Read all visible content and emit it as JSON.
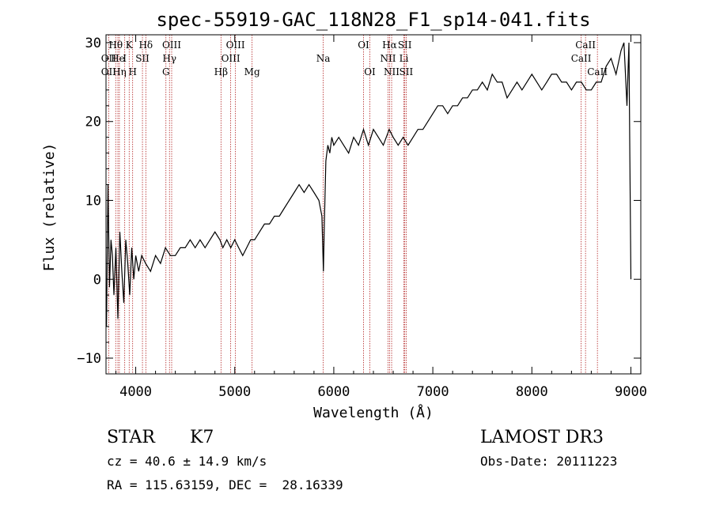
{
  "chart_data": {
    "type": "line",
    "title": "spec-55919-GAC_118N28_F1_sp14-041.fits",
    "xlabel": "Wavelength (Å)",
    "ylabel": "Flux (relative)",
    "xlim": [
      3700,
      9100
    ],
    "ylim": [
      -12,
      31
    ],
    "xticks": [
      4000,
      5000,
      6000,
      7000,
      8000,
      9000
    ],
    "yticks": [
      -10,
      0,
      10,
      20,
      30
    ],
    "grid": false,
    "colors": {
      "spectrum": "#000000",
      "lines": "#b22222"
    },
    "series": [
      {
        "x": [
          3705,
          3720,
          3735,
          3750,
          3765,
          3780,
          3800,
          3820,
          3840,
          3860,
          3880,
          3900,
          3920,
          3940,
          3960,
          3980,
          4000,
          4030,
          4060,
          4100,
          4150,
          4200,
          4250,
          4300,
          4350,
          4400,
          4450,
          4500,
          4550,
          4600,
          4650,
          4700,
          4750,
          4800,
          4850,
          4880,
          4920,
          4960,
          5000,
          5040,
          5080,
          5120,
          5160,
          5200,
          5250,
          5300,
          5350,
          5400,
          5450,
          5500,
          5550,
          5600,
          5650,
          5700,
          5750,
          5800,
          5850,
          5880,
          5895,
          5905,
          5920,
          5940,
          5960,
          5980,
          6000,
          6050,
          6100,
          6150,
          6200,
          6250,
          6300,
          6350,
          6400,
          6450,
          6500,
          6560,
          6600,
          6650,
          6700,
          6750,
          6800,
          6850,
          6900,
          6950,
          7000,
          7050,
          7100,
          7150,
          7200,
          7250,
          7300,
          7350,
          7400,
          7450,
          7500,
          7550,
          7600,
          7650,
          7700,
          7750,
          7800,
          7850,
          7900,
          7950,
          8000,
          8050,
          8100,
          8150,
          8200,
          8250,
          8300,
          8350,
          8400,
          8450,
          8500,
          8550,
          8600,
          8650,
          8700,
          8750,
          8800,
          8850,
          8900,
          8930,
          8960,
          8980,
          8990,
          9000
        ],
        "y": [
          -6,
          12,
          -1,
          5,
          3,
          -2,
          4,
          -5,
          6,
          1,
          -3,
          5,
          2,
          -2,
          4,
          0,
          3,
          1,
          3,
          2,
          1,
          3,
          2,
          4,
          3,
          3,
          4,
          4,
          5,
          4,
          5,
          4,
          5,
          6,
          5,
          4,
          5,
          4,
          5,
          4,
          3,
          4,
          5,
          5,
          6,
          7,
          7,
          8,
          8,
          9,
          10,
          11,
          12,
          11,
          12,
          11,
          10,
          8,
          1,
          7,
          15,
          17,
          16,
          18,
          17,
          18,
          17,
          16,
          18,
          17,
          19,
          17,
          19,
          18,
          17,
          19,
          18,
          17,
          18,
          17,
          18,
          19,
          19,
          20,
          21,
          22,
          22,
          21,
          22,
          22,
          23,
          23,
          24,
          24,
          25,
          24,
          26,
          25,
          25,
          23,
          24,
          25,
          24,
          25,
          26,
          25,
          24,
          25,
          26,
          26,
          25,
          25,
          24,
          25,
          25,
          24,
          24,
          25,
          25,
          27,
          28,
          26,
          29,
          30,
          22,
          30,
          15,
          0
        ]
      }
    ],
    "spectral_lines": [
      {
        "label": "Hθ",
        "x": 3798,
        "row": 0
      },
      {
        "label": "OII",
        "x": 3727,
        "row": 1
      },
      {
        "label": "OII",
        "x": 3727,
        "row": 2
      },
      {
        "label": "He",
        "x": 3820,
        "row": 1
      },
      {
        "label": "Hη",
        "x": 3835,
        "row": 2
      },
      {
        "label": "K",
        "x": 3934,
        "row": 0
      },
      {
        "label": "H",
        "x": 3969,
        "row": 2
      },
      {
        "label": "Hδ",
        "x": 4102,
        "row": 0
      },
      {
        "label": "I",
        "x": 3889,
        "row": 1
      },
      {
        "label": "SII",
        "x": 4068,
        "row": 1
      },
      {
        "label": "OIII",
        "x": 4363,
        "row": 0
      },
      {
        "label": "Hγ",
        "x": 4341,
        "row": 1
      },
      {
        "label": "G",
        "x": 4305,
        "row": 2
      },
      {
        "label": "OIII",
        "x": 5007,
        "row": 0
      },
      {
        "label": "OIII",
        "x": 4959,
        "row": 1
      },
      {
        "label": "Hβ",
        "x": 4861,
        "row": 2
      },
      {
        "label": "Mg",
        "x": 5175,
        "row": 2
      },
      {
        "label": "Na",
        "x": 5893,
        "row": 1
      },
      {
        "label": "OI",
        "x": 6300,
        "row": 0
      },
      {
        "label": "OI",
        "x": 6364,
        "row": 2
      },
      {
        "label": "Hα",
        "x": 6563,
        "row": 0
      },
      {
        "label": "SII",
        "x": 6717,
        "row": 0
      },
      {
        "label": "NII",
        "x": 6548,
        "row": 1
      },
      {
        "label": "Li",
        "x": 6708,
        "row": 1
      },
      {
        "label": "NII",
        "x": 6584,
        "row": 2
      },
      {
        "label": "SII",
        "x": 6731,
        "row": 2
      },
      {
        "label": "CaII",
        "x": 8542,
        "row": 0
      },
      {
        "label": "CaII",
        "x": 8498,
        "row": 1
      },
      {
        "label": "CaII",
        "x": 8662,
        "row": 2
      }
    ]
  },
  "info": {
    "class_label": "STAR",
    "subclass": "K7",
    "survey": "LAMOST DR3",
    "cz": "cz = 40.6 ± 14.9 km/s",
    "obs_date": "Obs-Date: 20111223",
    "coords": "RA = 115.63159, DEC =  28.16339"
  }
}
